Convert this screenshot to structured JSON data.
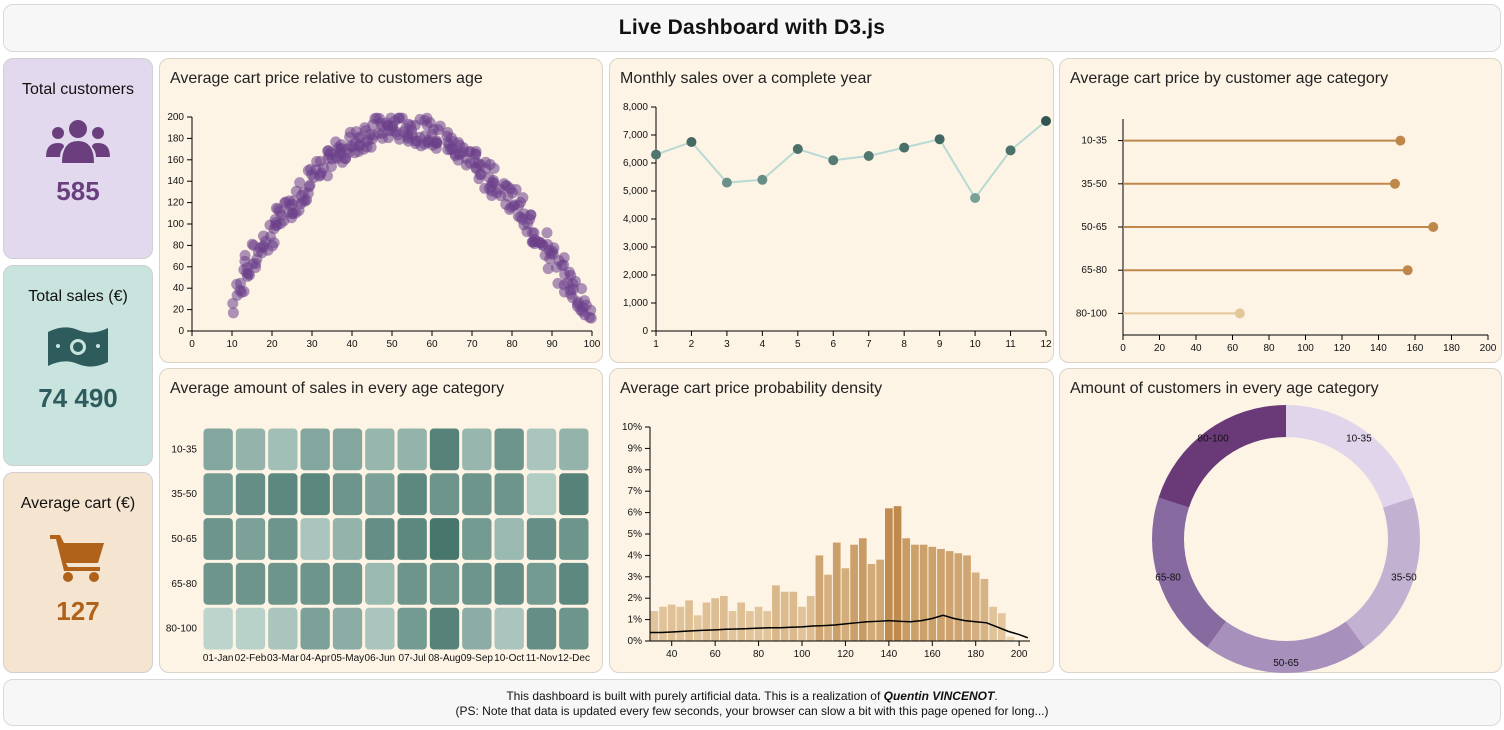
{
  "header": {
    "title": "Live Dashboard with D3.js"
  },
  "kpis": [
    {
      "title": "Total customers",
      "value": "585",
      "icon": "users-icon",
      "bg": "#e2d9ee",
      "color": "#6b3f7e"
    },
    {
      "title": "Total sales (€)",
      "value": "74 490",
      "icon": "money-icon",
      "bg": "#c9e4de",
      "color": "#2e5c5c"
    },
    {
      "title": "Average cart (€)",
      "value": "127",
      "icon": "cart-icon",
      "bg": "#f5e4d0",
      "color": "#b0621a"
    }
  ],
  "panels": {
    "scatter": {
      "title": "Average cart price relative to customers age"
    },
    "line": {
      "title": "Monthly sales over a complete year"
    },
    "lollipop": {
      "title": "Average cart price by customer age category"
    },
    "heatmap": {
      "title": "Average amount of sales in every age category"
    },
    "histogram": {
      "title": "Average cart price probability density"
    },
    "donut": {
      "title": "Amount of customers in every age category"
    }
  },
  "chart_data": [
    {
      "id": "scatter",
      "type": "scatter",
      "xlim": [
        0,
        100
      ],
      "ylim": [
        0,
        200
      ],
      "xticks": [
        0,
        10,
        20,
        30,
        40,
        50,
        60,
        70,
        80,
        90,
        100
      ],
      "yticks": [
        0,
        20,
        40,
        60,
        80,
        100,
        120,
        140,
        160,
        180,
        200
      ],
      "color": "#6b3f8a",
      "trend": "inverted parabola peaking near age 55 at about 190",
      "x": [
        10,
        12,
        14,
        16,
        18,
        20,
        22,
        24,
        26,
        28,
        30,
        32,
        34,
        36,
        38,
        40,
        42,
        44,
        46,
        48,
        50,
        52,
        54,
        56,
        58,
        60,
        62,
        64,
        66,
        68,
        70,
        72,
        74,
        76,
        78,
        80,
        82,
        84,
        86,
        88,
        90,
        92,
        94,
        96,
        98,
        100
      ],
      "y": [
        28,
        45,
        58,
        70,
        80,
        92,
        102,
        112,
        122,
        132,
        140,
        148,
        156,
        164,
        170,
        175,
        180,
        184,
        187,
        189,
        190,
        190,
        189,
        188,
        186,
        183,
        180,
        176,
        171,
        166,
        160,
        153,
        146,
        139,
        131,
        122,
        112,
        102,
        92,
        80,
        68,
        56,
        44,
        36,
        28,
        22
      ]
    },
    {
      "id": "line",
      "type": "line",
      "x": [
        1,
        2,
        3,
        4,
        5,
        6,
        7,
        8,
        9,
        10,
        11,
        12
      ],
      "values": [
        6300,
        6750,
        5300,
        5400,
        6500,
        6100,
        6250,
        6550,
        6850,
        4750,
        6450,
        7500
      ],
      "xlim": [
        1,
        12
      ],
      "ylim": [
        0,
        8000
      ],
      "yticks": [
        "0",
        "1,000",
        "2,000",
        "3,000",
        "4,000",
        "5,000",
        "6,000",
        "7,000",
        "8,000"
      ],
      "line_color": "#b8dad3",
      "point_color": "#3f7a73"
    },
    {
      "id": "lollipop",
      "type": "bar",
      "categories": [
        "10-35",
        "35-50",
        "50-65",
        "65-80",
        "80-100"
      ],
      "values": [
        152,
        149,
        170,
        156,
        64
      ],
      "xlim": [
        0,
        200
      ],
      "xticks": [
        0,
        20,
        40,
        60,
        80,
        100,
        120,
        140,
        160,
        180,
        200
      ],
      "colors": [
        "#c0874a",
        "#c0874a",
        "#c0874a",
        "#c0874a",
        "#e3c69a"
      ]
    },
    {
      "id": "heatmap",
      "type": "heatmap",
      "rows": [
        "10-35",
        "35-50",
        "50-65",
        "65-80",
        "80-100"
      ],
      "columns": [
        "01-Jan",
        "02-Feb",
        "03-Mar",
        "04-Apr",
        "05-May",
        "06-Jun",
        "07-Jul",
        "08-Aug",
        "09-Sep",
        "10-Oct",
        "11-Nov",
        "12-Dec"
      ],
      "values": [
        [
          0.55,
          0.45,
          0.35,
          0.55,
          0.55,
          0.42,
          0.45,
          0.85,
          0.42,
          0.7,
          0.3,
          0.45
        ],
        [
          0.65,
          0.75,
          0.8,
          0.82,
          0.7,
          0.6,
          0.8,
          0.7,
          0.7,
          0.7,
          0.25,
          0.85
        ],
        [
          0.7,
          0.6,
          0.7,
          0.3,
          0.45,
          0.75,
          0.8,
          0.95,
          0.65,
          0.4,
          0.75,
          0.7
        ],
        [
          0.7,
          0.7,
          0.7,
          0.7,
          0.7,
          0.4,
          0.7,
          0.7,
          0.7,
          0.75,
          0.65,
          0.8
        ],
        [
          0.18,
          0.2,
          0.3,
          0.6,
          0.5,
          0.3,
          0.65,
          0.85,
          0.5,
          0.3,
          0.75,
          0.7
        ]
      ],
      "color_low": "#d7eae2",
      "color_high": "#3f7067"
    },
    {
      "id": "histogram",
      "type": "bar",
      "x": [
        32,
        36,
        40,
        44,
        48,
        52,
        56,
        60,
        64,
        68,
        72,
        76,
        80,
        84,
        88,
        92,
        96,
        100,
        104,
        108,
        112,
        116,
        120,
        124,
        128,
        132,
        136,
        140,
        144,
        148,
        152,
        156,
        160,
        164,
        168,
        172,
        176,
        180,
        184,
        188,
        192,
        196
      ],
      "values": [
        1.4,
        1.6,
        1.7,
        1.6,
        1.9,
        1.2,
        1.8,
        2.0,
        2.1,
        1.4,
        1.8,
        1.4,
        1.6,
        1.4,
        2.6,
        2.3,
        2.3,
        1.6,
        2.1,
        4.0,
        3.1,
        4.6,
        3.4,
        4.5,
        4.8,
        3.6,
        3.8,
        6.2,
        6.3,
        4.8,
        4.5,
        4.5,
        4.4,
        4.3,
        4.2,
        4.1,
        4.0,
        3.2,
        2.9,
        1.6,
        1.3,
        0.2
      ],
      "density": [
        0.4,
        0.4,
        0.42,
        0.45,
        0.48,
        0.5,
        0.52,
        0.55,
        0.56,
        0.58,
        0.6,
        0.62,
        0.62,
        0.64,
        0.66,
        0.7,
        0.72,
        0.75,
        0.8,
        0.85,
        0.9,
        0.92,
        0.95,
        0.92,
        0.9,
        0.95,
        1.05,
        1.2,
        1.05,
        0.95,
        0.9,
        0.85,
        0.65,
        0.45,
        0.3,
        0.15
      ],
      "density_x": [
        30,
        35,
        40,
        45,
        50,
        55,
        60,
        65,
        70,
        75,
        80,
        85,
        90,
        95,
        100,
        105,
        110,
        115,
        120,
        125,
        130,
        135,
        140,
        145,
        150,
        155,
        160,
        165,
        170,
        175,
        180,
        185,
        190,
        195,
        200,
        204
      ],
      "xlim": [
        30,
        205
      ],
      "ylim": [
        0,
        10
      ],
      "xticks": [
        40,
        60,
        80,
        100,
        120,
        140,
        160,
        180,
        200
      ],
      "yticks": [
        "0%",
        "1%",
        "2%",
        "3%",
        "4%",
        "5%",
        "6%",
        "7%",
        "8%",
        "9%",
        "10%"
      ]
    },
    {
      "id": "donut",
      "type": "pie",
      "labels": [
        "10-35",
        "35-50",
        "50-65",
        "65-80",
        "80-100"
      ],
      "values": [
        100,
        100,
        100,
        100,
        100
      ],
      "colors": [
        "#e0d5ea",
        "#c3b1d1",
        "#a890bd",
        "#876a9f",
        "#6a3a78"
      ]
    }
  ],
  "footer": {
    "line1_prefix": "This dashboard is built with purely artificial data. This is a realization of",
    "author": "Quentin VINCENOT",
    "line1_suffix": ".",
    "line2": "(PS: Note that data is updated every few seconds, your browser can slow a bit with this page opened for long...)"
  }
}
